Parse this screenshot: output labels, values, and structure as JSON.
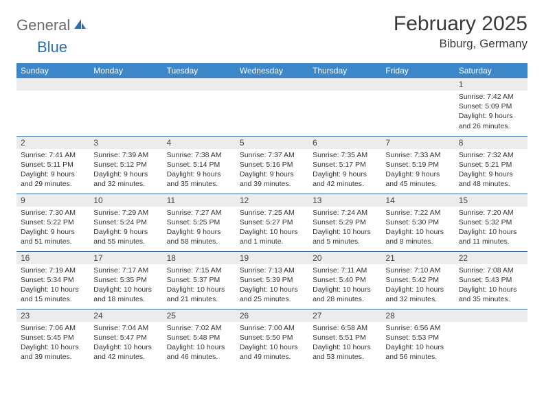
{
  "logo": {
    "text1": "General",
    "text2": "Blue"
  },
  "title": "February 2025",
  "location": "Biburg, Germany",
  "colors": {
    "header_bg": "#3b87c8",
    "header_text": "#ffffff",
    "daynum_bg": "#ececec",
    "cell_border": "#3b6fa0",
    "body_text": "#333333",
    "logo_gray": "#6b6b6b",
    "logo_blue": "#2a6fb5"
  },
  "typography": {
    "title_fontsize": 30,
    "location_fontsize": 17,
    "header_fontsize": 12,
    "daynum_fontsize": 12,
    "detail_fontsize": 10.5
  },
  "day_headers": [
    "Sunday",
    "Monday",
    "Tuesday",
    "Wednesday",
    "Thursday",
    "Friday",
    "Saturday"
  ],
  "weeks": [
    [
      null,
      null,
      null,
      null,
      null,
      null,
      {
        "n": "1",
        "sr": "7:42 AM",
        "ss": "5:09 PM",
        "dl": "9 hours and 26 minutes."
      }
    ],
    [
      {
        "n": "2",
        "sr": "7:41 AM",
        "ss": "5:11 PM",
        "dl": "9 hours and 29 minutes."
      },
      {
        "n": "3",
        "sr": "7:39 AM",
        "ss": "5:12 PM",
        "dl": "9 hours and 32 minutes."
      },
      {
        "n": "4",
        "sr": "7:38 AM",
        "ss": "5:14 PM",
        "dl": "9 hours and 35 minutes."
      },
      {
        "n": "5",
        "sr": "7:37 AM",
        "ss": "5:16 PM",
        "dl": "9 hours and 39 minutes."
      },
      {
        "n": "6",
        "sr": "7:35 AM",
        "ss": "5:17 PM",
        "dl": "9 hours and 42 minutes."
      },
      {
        "n": "7",
        "sr": "7:33 AM",
        "ss": "5:19 PM",
        "dl": "9 hours and 45 minutes."
      },
      {
        "n": "8",
        "sr": "7:32 AM",
        "ss": "5:21 PM",
        "dl": "9 hours and 48 minutes."
      }
    ],
    [
      {
        "n": "9",
        "sr": "7:30 AM",
        "ss": "5:22 PM",
        "dl": "9 hours and 51 minutes."
      },
      {
        "n": "10",
        "sr": "7:29 AM",
        "ss": "5:24 PM",
        "dl": "9 hours and 55 minutes."
      },
      {
        "n": "11",
        "sr": "7:27 AM",
        "ss": "5:25 PM",
        "dl": "9 hours and 58 minutes."
      },
      {
        "n": "12",
        "sr": "7:25 AM",
        "ss": "5:27 PM",
        "dl": "10 hours and 1 minute."
      },
      {
        "n": "13",
        "sr": "7:24 AM",
        "ss": "5:29 PM",
        "dl": "10 hours and 5 minutes."
      },
      {
        "n": "14",
        "sr": "7:22 AM",
        "ss": "5:30 PM",
        "dl": "10 hours and 8 minutes."
      },
      {
        "n": "15",
        "sr": "7:20 AM",
        "ss": "5:32 PM",
        "dl": "10 hours and 11 minutes."
      }
    ],
    [
      {
        "n": "16",
        "sr": "7:19 AM",
        "ss": "5:34 PM",
        "dl": "10 hours and 15 minutes."
      },
      {
        "n": "17",
        "sr": "7:17 AM",
        "ss": "5:35 PM",
        "dl": "10 hours and 18 minutes."
      },
      {
        "n": "18",
        "sr": "7:15 AM",
        "ss": "5:37 PM",
        "dl": "10 hours and 21 minutes."
      },
      {
        "n": "19",
        "sr": "7:13 AM",
        "ss": "5:39 PM",
        "dl": "10 hours and 25 minutes."
      },
      {
        "n": "20",
        "sr": "7:11 AM",
        "ss": "5:40 PM",
        "dl": "10 hours and 28 minutes."
      },
      {
        "n": "21",
        "sr": "7:10 AM",
        "ss": "5:42 PM",
        "dl": "10 hours and 32 minutes."
      },
      {
        "n": "22",
        "sr": "7:08 AM",
        "ss": "5:43 PM",
        "dl": "10 hours and 35 minutes."
      }
    ],
    [
      {
        "n": "23",
        "sr": "7:06 AM",
        "ss": "5:45 PM",
        "dl": "10 hours and 39 minutes."
      },
      {
        "n": "24",
        "sr": "7:04 AM",
        "ss": "5:47 PM",
        "dl": "10 hours and 42 minutes."
      },
      {
        "n": "25",
        "sr": "7:02 AM",
        "ss": "5:48 PM",
        "dl": "10 hours and 46 minutes."
      },
      {
        "n": "26",
        "sr": "7:00 AM",
        "ss": "5:50 PM",
        "dl": "10 hours and 49 minutes."
      },
      {
        "n": "27",
        "sr": "6:58 AM",
        "ss": "5:51 PM",
        "dl": "10 hours and 53 minutes."
      },
      {
        "n": "28",
        "sr": "6:56 AM",
        "ss": "5:53 PM",
        "dl": "10 hours and 56 minutes."
      },
      null
    ]
  ],
  "labels": {
    "sunrise": "Sunrise: ",
    "sunset": "Sunset: ",
    "daylight": "Daylight: "
  }
}
